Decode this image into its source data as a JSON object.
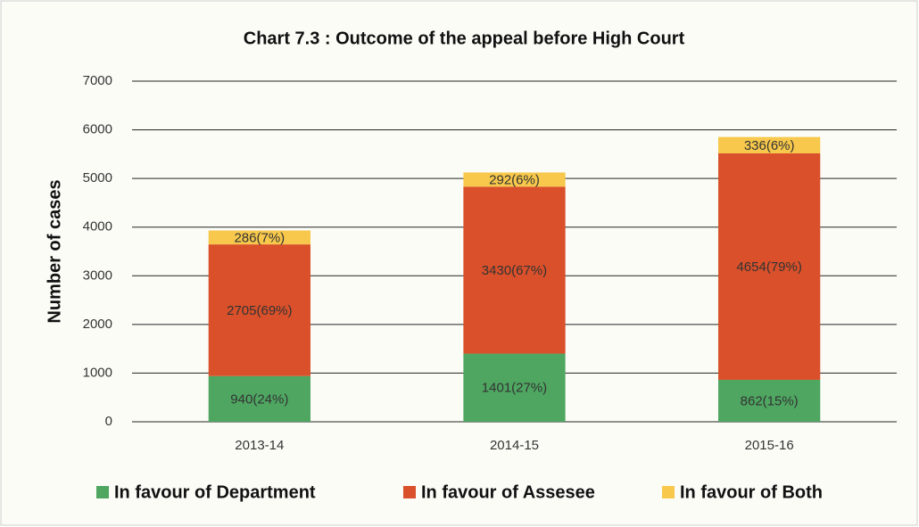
{
  "chart_data": {
    "type": "stacked_bar",
    "title": "Chart 7.3 : Outcome of the appeal before High Court",
    "y_label": "Number of cases",
    "categories": [
      "2013-14",
      "2014-15",
      "2015-16"
    ],
    "series": [
      {
        "name": "In favour of Department",
        "color": "#4ea661",
        "values": [
          940,
          1401,
          862
        ],
        "value_labels": [
          "940(24%)",
          "1401(27%)",
          "862(15%)"
        ]
      },
      {
        "name": "In favour of Assesee",
        "color": "#d9502a",
        "values": [
          2705,
          3430,
          4654
        ],
        "value_labels": [
          "2705(69%)",
          "3430(67%)",
          "4654(79%)"
        ]
      },
      {
        "name": "In favour of Both",
        "color": "#f7c84b",
        "values": [
          286,
          292,
          336
        ],
        "value_labels": [
          "286(7%)",
          "292(6%)",
          "336(6%)"
        ]
      }
    ],
    "ylim": [
      0,
      7000
    ],
    "yticks": [
      0,
      1000,
      2000,
      3000,
      4000,
      5000,
      6000,
      7000
    ],
    "grid": true,
    "legend": "bottom"
  }
}
